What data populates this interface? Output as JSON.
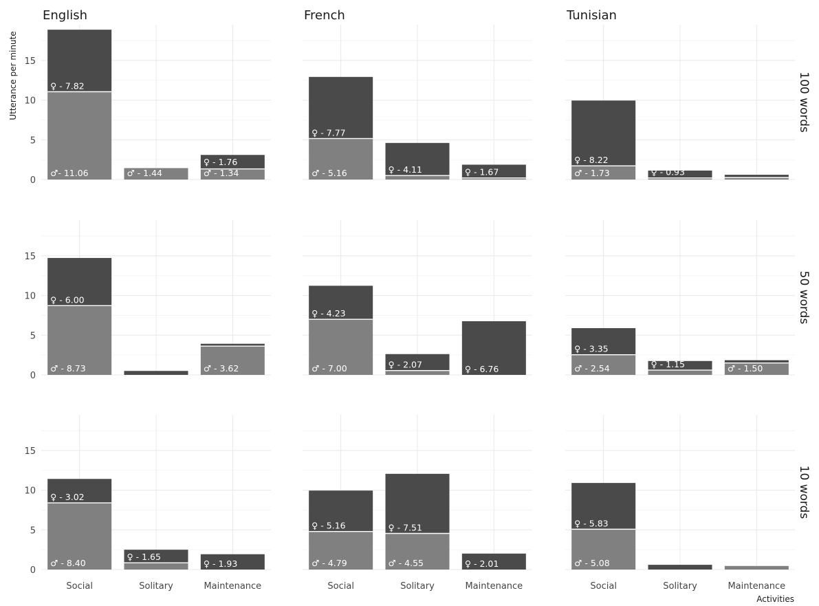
{
  "chart_data": {
    "type": "bar",
    "stacked": true,
    "xlabel": "Activities",
    "ylabel": "Utterance per minute",
    "ylim": [
      0,
      19.5
    ],
    "yticks": [
      0,
      5,
      10,
      15
    ],
    "grid": true,
    "columns": [
      "English",
      "French",
      "Tunisian"
    ],
    "rows": [
      "100 words",
      "50 words",
      "10 words"
    ],
    "categories": [
      "Social",
      "Solitary",
      "Maintenance"
    ],
    "colors": {
      "male": "#808080",
      "female": "#4a4a4a",
      "separator": "#ffffff"
    },
    "symbols": {
      "male": "♂",
      "female": "♀"
    },
    "panels": [
      {
        "row": "100 words",
        "col": "English",
        "male": [
          11.06,
          1.44,
          1.34
        ],
        "female": [
          7.82,
          0,
          1.76
        ],
        "male_labels": [
          "♂- 11.06",
          "♂ - 1.44",
          "♂ - 1.34"
        ],
        "female_labels": [
          "♀ -  7.82",
          "",
          "♀ -  1.76"
        ]
      },
      {
        "row": "100 words",
        "col": "French",
        "male": [
          5.16,
          0.5,
          0.2
        ],
        "female": [
          7.77,
          4.11,
          1.67
        ],
        "male_labels": [
          "♂ -  5.16",
          "",
          ""
        ],
        "female_labels": [
          "♀ -  7.77",
          "♀ -  4.11",
          "♀ -  1.67"
        ]
      },
      {
        "row": "100 words",
        "col": "Tunisian",
        "male": [
          1.73,
          0.2,
          0.25
        ],
        "female": [
          8.22,
          0.93,
          0.35
        ],
        "male_labels": [
          "♂ -  1.73",
          "",
          ""
        ],
        "female_labels": [
          "♀ -  8.22",
          "♀ -  0.93",
          ""
        ]
      },
      {
        "row": "50 words",
        "col": "English",
        "male": [
          8.73,
          0,
          3.62
        ],
        "female": [
          6.0,
          0.5,
          0.3
        ],
        "male_labels": [
          "♂ -  8.73",
          "",
          "♂ -  3.62"
        ],
        "female_labels": [
          "♀ -  6.00",
          "",
          ""
        ]
      },
      {
        "row": "50 words",
        "col": "French",
        "male": [
          7.0,
          0.55,
          0
        ],
        "female": [
          4.23,
          2.07,
          6.76
        ],
        "male_labels": [
          "♂ -  7.00",
          "",
          ""
        ],
        "female_labels": [
          "♀ -  4.23",
          "♀ -  2.07",
          "♀ -  6.76"
        ]
      },
      {
        "row": "50 words",
        "col": "Tunisian",
        "male": [
          2.54,
          0.6,
          1.5
        ],
        "female": [
          3.35,
          1.15,
          0.35
        ],
        "male_labels": [
          "♂ -  2.54",
          "",
          "♂ -  1.50"
        ],
        "female_labels": [
          "♀ -  3.35",
          "♀ -  1.15",
          ""
        ]
      },
      {
        "row": "10 words",
        "col": "English",
        "male": [
          8.4,
          0.85,
          0
        ],
        "female": [
          3.02,
          1.65,
          1.93
        ],
        "male_labels": [
          "♂ -  8.40",
          "",
          ""
        ],
        "female_labels": [
          "♀ -  3.02",
          "♀ -  1.65",
          "♀ -  1.93"
        ]
      },
      {
        "row": "10 words",
        "col": "French",
        "male": [
          4.79,
          4.55,
          0
        ],
        "female": [
          5.16,
          7.51,
          2.01
        ],
        "male_labels": [
          "♂ -  4.79",
          "♂ -  4.55",
          ""
        ],
        "female_labels": [
          "♀ -  5.16",
          "♀ -  7.51",
          "♀ -  2.01"
        ]
      },
      {
        "row": "10 words",
        "col": "Tunisian",
        "male": [
          5.08,
          0,
          0.45
        ],
        "female": [
          5.83,
          0.6,
          0
        ],
        "male_labels": [
          "♂ -  5.08",
          "",
          ""
        ],
        "female_labels": [
          "♀ -  5.83",
          "",
          ""
        ]
      }
    ]
  }
}
